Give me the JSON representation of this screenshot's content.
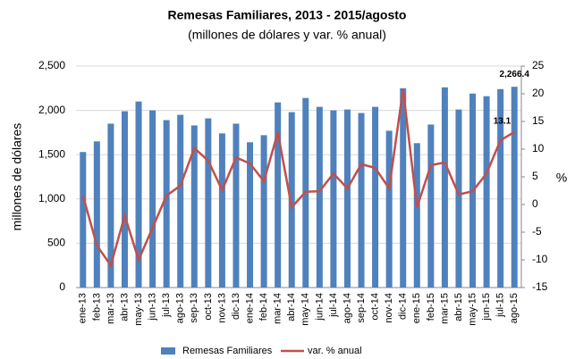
{
  "chart_data": {
    "type": "bar_line",
    "title": "Remesas Familiares, 2013 - 2015/agosto",
    "subtitle": "(millones de dólares y var. % anual)",
    "y_label": "millones de dólares",
    "y2_label": "%",
    "categories": [
      "ene-13",
      "feb-13",
      "mar-13",
      "abr-13",
      "may-13",
      "jun-13",
      "jul-13",
      "ago-13",
      "sep-13",
      "oct-13",
      "nov-13",
      "dic-13",
      "ene-14",
      "feb-14",
      "mar-14",
      "abr-14",
      "may-14",
      "jun-14",
      "jul-14",
      "ago-14",
      "sep-14",
      "oct-14",
      "nov-14",
      "dic-14",
      "ene-15",
      "feb-15",
      "mar-15",
      "abr-15",
      "may-15",
      "jun-15",
      "jul-15",
      "ago-15"
    ],
    "series": [
      {
        "name": "Remesas Familiares",
        "color": "#4f81bd",
        "type": "bar",
        "values": [
          1530,
          1650,
          1850,
          1990,
          2100,
          2000,
          1890,
          1950,
          1830,
          1910,
          1740,
          1850,
          1640,
          1720,
          2090,
          1980,
          2140,
          2040,
          2000,
          2010,
          1970,
          2040,
          1770,
          2250,
          1630,
          1840,
          2260,
          2010,
          2190,
          2160,
          2240,
          2266.4
        ],
        "value_labels": [
          null,
          null,
          null,
          null,
          null,
          null,
          null,
          null,
          null,
          null,
          null,
          null,
          null,
          null,
          null,
          null,
          null,
          null,
          null,
          null,
          null,
          null,
          null,
          null,
          null,
          null,
          null,
          null,
          null,
          null,
          null,
          "2,266.4"
        ]
      },
      {
        "name": "var. % anual",
        "color": "#c0504d",
        "type": "line",
        "axis": "y2",
        "values": [
          1.6,
          -7.4,
          -11,
          -2,
          -10,
          -4.2,
          1.6,
          3.4,
          10.2,
          7.9,
          2.6,
          8.5,
          7.4,
          4.2,
          13,
          -0.5,
          2.3,
          2.4,
          5.6,
          2.9,
          7.3,
          6.6,
          2.9,
          20.8,
          -0.5,
          7.1,
          7.6,
          1.8,
          2.4,
          5.6,
          11.6,
          13.1
        ]
      }
    ],
    "ylim": [
      0,
      2500
    ],
    "yticks": [
      0,
      500,
      {
        "value": 1000,
        "label": "1,000"
      },
      {
        "value": 1500,
        "label": "1,500"
      },
      {
        "value": 2000,
        "label": "2,000"
      },
      {
        "value": 2500,
        "label": "2,500"
      }
    ],
    "y2lim": [
      -15,
      25
    ],
    "y2ticks": [
      -15,
      -10,
      -5,
      0,
      5,
      10,
      15,
      20,
      25
    ],
    "grid": true
  }
}
